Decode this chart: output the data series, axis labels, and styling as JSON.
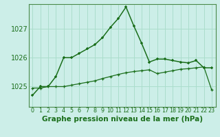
{
  "title": "Graphe pression niveau de la mer (hPa)",
  "background_color": "#cceee8",
  "grid_color": "#aaddcc",
  "line_color": "#1a6e1a",
  "x_labels": [
    "0",
    "1",
    "2",
    "3",
    "4",
    "5",
    "6",
    "7",
    "8",
    "9",
    "10",
    "11",
    "12",
    "13",
    "14",
    "15",
    "16",
    "17",
    "18",
    "19",
    "20",
    "21",
    "22",
    "23"
  ],
  "y_ticks": [
    1025,
    1026,
    1027
  ],
  "ylim": [
    1024.3,
    1027.85
  ],
  "xlim": [
    -0.5,
    23.5
  ],
  "line1_x": [
    0,
    1,
    2,
    3,
    4,
    5,
    6,
    7,
    8,
    9,
    10,
    11,
    12,
    13,
    14,
    15,
    16,
    17,
    18,
    19,
    20,
    21,
    22,
    23
  ],
  "line1_y": [
    1024.7,
    1025.0,
    1025.0,
    1025.35,
    1026.0,
    1026.0,
    1026.15,
    1026.3,
    1026.45,
    1026.7,
    1027.05,
    1027.35,
    1027.75,
    1027.1,
    1026.5,
    1025.85,
    1025.95,
    1025.95,
    1025.9,
    1025.85,
    1025.82,
    1025.9,
    1025.65,
    1025.65
  ],
  "line2_x": [
    0,
    1,
    2,
    3,
    4,
    5,
    6,
    7,
    8,
    9,
    10,
    11,
    12,
    13,
    14,
    15,
    16,
    17,
    18,
    19,
    20,
    21,
    22,
    23
  ],
  "line2_y": [
    1024.95,
    1024.95,
    1025.0,
    1025.0,
    1025.0,
    1025.05,
    1025.1,
    1025.15,
    1025.2,
    1025.28,
    1025.35,
    1025.42,
    1025.48,
    1025.52,
    1025.55,
    1025.58,
    1025.45,
    1025.5,
    1025.55,
    1025.6,
    1025.62,
    1025.65,
    1025.68,
    1024.88
  ],
  "ylabel_fontsize": 7,
  "xlabel_fontsize": 7.5,
  "xtick_fontsize": 5.8,
  "spine_color": "#4a8a4a",
  "marker_size": 3.5,
  "linewidth1": 1.1,
  "linewidth2": 0.9
}
